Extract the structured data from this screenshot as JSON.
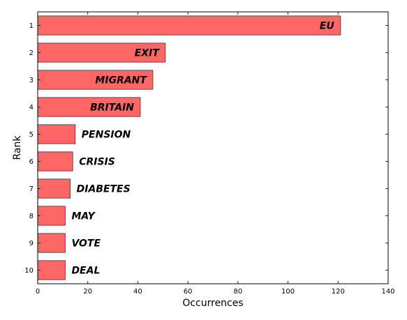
{
  "chart_data": {
    "type": "bar",
    "orientation": "horizontal",
    "categories": [
      "1",
      "2",
      "3",
      "4",
      "5",
      "6",
      "7",
      "8",
      "9",
      "10"
    ],
    "values": [
      121,
      51,
      46,
      41,
      15,
      14,
      13,
      11,
      11,
      11
    ],
    "labels": [
      "EU",
      "EXIT",
      "MIGRANT",
      "BRITAIN",
      "PENSION",
      "CRISIS",
      "DIABETES",
      "MAY",
      "VOTE",
      "DEAL"
    ],
    "xlabel": "Occurrences",
    "ylabel": "Rank",
    "xlim": [
      0,
      140
    ],
    "xticks": [
      0,
      20,
      40,
      60,
      80,
      100,
      120,
      140
    ],
    "grid": false,
    "bar_color": "#ff6666"
  }
}
